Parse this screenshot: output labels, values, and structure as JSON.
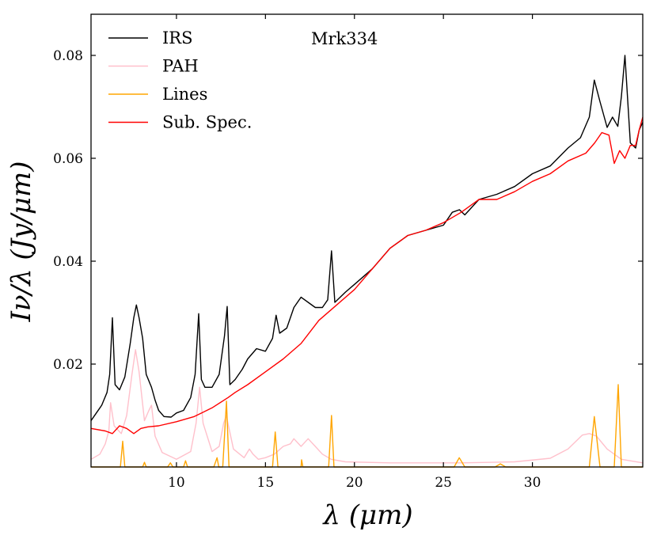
{
  "chart_data": {
    "type": "line",
    "title": "",
    "annotation": "Mrk334",
    "xlabel": "λ (μm)",
    "ylabel": "Iν/λ (Jy/μm)",
    "xlim": [
      5.2,
      36.2
    ],
    "ylim": [
      0.0,
      0.088
    ],
    "x_ticks": [
      10,
      15,
      20,
      25,
      30
    ],
    "x_tick_labels": [
      "10",
      "15",
      "20",
      "25",
      "30"
    ],
    "y_ticks": [
      0.02,
      0.04,
      0.06,
      0.08
    ],
    "y_tick_labels": [
      "0.02",
      "0.04",
      "0.06",
      "0.08"
    ],
    "grid": false,
    "legend_position": "top-left",
    "series": [
      {
        "name": "IRS",
        "color": "#000000",
        "x": [
          5.2,
          5.5,
          5.8,
          6.1,
          6.25,
          6.4,
          6.55,
          6.8,
          7.1,
          7.4,
          7.6,
          7.75,
          7.9,
          8.1,
          8.3,
          8.6,
          8.8,
          9.0,
          9.3,
          9.7,
          10.0,
          10.4,
          10.8,
          11.05,
          11.25,
          11.4,
          11.6,
          12.0,
          12.4,
          12.7,
          12.85,
          13.0,
          13.3,
          13.7,
          14.0,
          14.5,
          15.0,
          15.4,
          15.6,
          15.8,
          16.2,
          16.6,
          17.0,
          17.4,
          17.8,
          18.2,
          18.5,
          18.71,
          18.9,
          19.5,
          20.0,
          21.0,
          22.0,
          23.0,
          24.0,
          25.0,
          25.5,
          25.9,
          26.2,
          27.0,
          28.0,
          29.0,
          30.0,
          31.0,
          32.0,
          32.7,
          33.2,
          33.48,
          33.8,
          34.2,
          34.5,
          34.8,
          35.0,
          35.2,
          35.5,
          35.8,
          36.0,
          36.2
        ],
        "y": [
          0.009,
          0.0105,
          0.012,
          0.0145,
          0.018,
          0.029,
          0.016,
          0.015,
          0.0175,
          0.024,
          0.029,
          0.0315,
          0.029,
          0.025,
          0.018,
          0.0155,
          0.013,
          0.011,
          0.0098,
          0.0097,
          0.0105,
          0.011,
          0.0135,
          0.018,
          0.0298,
          0.017,
          0.0155,
          0.0155,
          0.018,
          0.0255,
          0.0312,
          0.016,
          0.017,
          0.019,
          0.021,
          0.023,
          0.0225,
          0.025,
          0.0295,
          0.026,
          0.027,
          0.031,
          0.033,
          0.032,
          0.031,
          0.031,
          0.0325,
          0.042,
          0.032,
          0.034,
          0.0355,
          0.0385,
          0.0425,
          0.045,
          0.046,
          0.047,
          0.0495,
          0.05,
          0.049,
          0.052,
          0.053,
          0.0545,
          0.057,
          0.0585,
          0.062,
          0.064,
          0.068,
          0.0752,
          0.071,
          0.066,
          0.068,
          0.0662,
          0.072,
          0.08,
          0.063,
          0.062,
          0.0655,
          0.067
        ]
      },
      {
        "name": "PAH",
        "color": "#FFC0CB",
        "x": [
          5.2,
          5.7,
          6.0,
          6.2,
          6.3,
          6.5,
          6.9,
          7.2,
          7.5,
          7.7,
          7.9,
          8.2,
          8.45,
          8.6,
          8.8,
          9.2,
          10.0,
          10.8,
          11.1,
          11.3,
          11.5,
          12.0,
          12.4,
          12.65,
          12.8,
          13.2,
          13.8,
          14.1,
          14.3,
          14.6,
          15.0,
          15.5,
          16.0,
          16.4,
          16.6,
          17.0,
          17.4,
          17.8,
          18.2,
          18.7,
          19.5,
          22.0,
          26.0,
          29.0,
          31.0,
          32.0,
          32.8,
          33.2,
          33.6,
          34.2,
          35.0,
          36.2
        ],
        "y": [
          0.0015,
          0.0025,
          0.0045,
          0.007,
          0.0125,
          0.008,
          0.0065,
          0.01,
          0.018,
          0.0228,
          0.0185,
          0.009,
          0.011,
          0.012,
          0.006,
          0.0028,
          0.0015,
          0.003,
          0.0085,
          0.0155,
          0.0085,
          0.003,
          0.004,
          0.0085,
          0.01,
          0.0035,
          0.0018,
          0.0035,
          0.0025,
          0.0015,
          0.0018,
          0.0025,
          0.004,
          0.0045,
          0.0055,
          0.004,
          0.0055,
          0.004,
          0.0025,
          0.0015,
          0.001,
          0.0008,
          0.0008,
          0.001,
          0.0017,
          0.0035,
          0.0062,
          0.0065,
          0.006,
          0.0035,
          0.0015,
          0.0008
        ]
      },
      {
        "name": "Lines",
        "color": "#FFA500",
        "x": [
          5.2,
          6.85,
          6.98,
          7.1,
          8.1,
          8.2,
          8.3,
          9.5,
          9.66,
          9.8,
          10.4,
          10.51,
          10.62,
          12.1,
          12.28,
          12.38,
          12.6,
          12.81,
          12.95,
          15.4,
          15.55,
          15.7,
          17.0,
          17.03,
          17.1,
          18.55,
          18.71,
          18.85,
          25.6,
          25.89,
          26.2,
          27.9,
          28.2,
          28.5,
          33.2,
          33.48,
          33.8,
          34.6,
          34.82,
          35.0,
          36.2
        ],
        "y": [
          0.0,
          0.0,
          0.005,
          0.0,
          0.0,
          0.0009,
          0.0,
          0.0,
          0.0008,
          0.0,
          0.0,
          0.0012,
          0.0,
          0.0,
          0.0018,
          0.0,
          0.0,
          0.0128,
          0.0,
          0.0,
          0.0068,
          0.0,
          0.0,
          0.0014,
          0.0,
          0.0,
          0.01,
          0.0,
          0.0,
          0.0018,
          0.0,
          0.0,
          0.0006,
          0.0,
          0.0,
          0.0098,
          0.0,
          0.0,
          0.016,
          0.0,
          0.0
        ]
      },
      {
        "name": "Sub. Spec.",
        "color": "#FF0000",
        "x": [
          5.2,
          6.0,
          6.4,
          6.8,
          7.2,
          7.6,
          8.0,
          8.4,
          9.0,
          10.0,
          11.0,
          12.0,
          12.9,
          13.3,
          14.0,
          15.0,
          16.0,
          17.0,
          18.0,
          19.0,
          20.0,
          21.0,
          22.0,
          23.0,
          24.0,
          25.0,
          26.0,
          27.0,
          28.0,
          29.0,
          30.0,
          31.0,
          32.0,
          33.0,
          33.5,
          33.9,
          34.3,
          34.6,
          34.9,
          35.2,
          35.5,
          35.8,
          36.0,
          36.2
        ],
        "y": [
          0.0075,
          0.007,
          0.0065,
          0.008,
          0.0075,
          0.0065,
          0.0075,
          0.0078,
          0.008,
          0.0088,
          0.0098,
          0.0115,
          0.0135,
          0.0145,
          0.016,
          0.0185,
          0.021,
          0.024,
          0.0285,
          0.0315,
          0.0345,
          0.0385,
          0.0425,
          0.045,
          0.046,
          0.0475,
          0.0495,
          0.052,
          0.052,
          0.0535,
          0.0555,
          0.057,
          0.0595,
          0.061,
          0.063,
          0.065,
          0.0645,
          0.059,
          0.0615,
          0.06,
          0.0625,
          0.0625,
          0.0655,
          0.068
        ]
      }
    ]
  }
}
